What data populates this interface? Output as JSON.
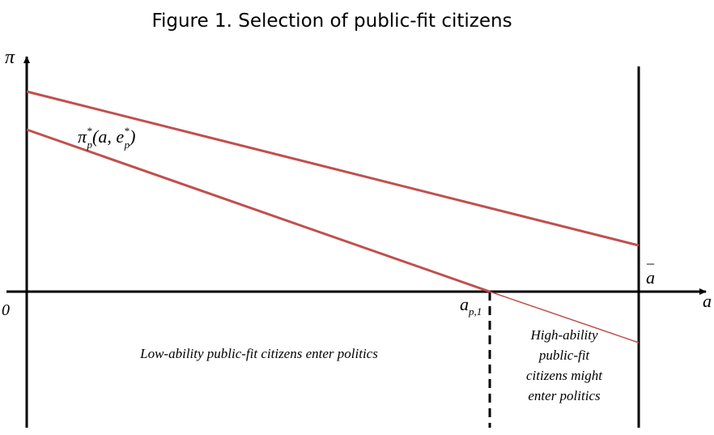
{
  "title": "Figure 1. Selection of public-fit citizens",
  "axes": {
    "y_label": "π",
    "x_label": "a",
    "origin": "0"
  },
  "curve_label": {
    "symbol": "π",
    "symbol_sup": "*",
    "symbol_sub": "p",
    "args": "(a, e",
    "arg_sup": "*",
    "arg_sub": "p",
    "close": ")"
  },
  "threshold_label": {
    "symbol": "a",
    "sub": "p,1"
  },
  "upper_bound_label": {
    "symbol": "a",
    "bar": "_"
  },
  "annotations": {
    "low": "Low-ability public-fit citizens enter politics",
    "high": [
      "High-ability",
      "public-fit",
      "citizens might",
      "enter politics"
    ]
  }
}
